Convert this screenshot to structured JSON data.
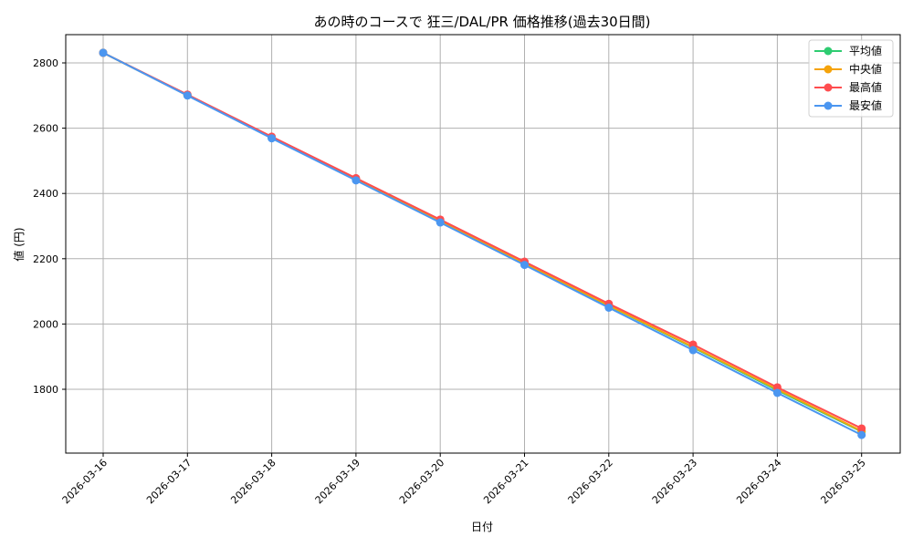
{
  "chart_data": {
    "type": "line",
    "title": "あの時のコースで 狂三/DAL/PR 価格推移(過去30日間)",
    "xlabel": "日付",
    "ylabel": "値 (円)",
    "categories": [
      "2026-03-16",
      "2026-03-17",
      "2026-03-18",
      "2026-03-19",
      "2026-03-20",
      "2026-03-21",
      "2026-03-22",
      "2026-03-23",
      "2026-03-24",
      "2026-03-25"
    ],
    "yticks": [
      1800,
      2000,
      2200,
      2400,
      2600,
      2800
    ],
    "ylim": [
      1625,
      2890
    ],
    "grid": true,
    "legend_position": "upper right",
    "series": [
      {
        "name": "平均値",
        "color": "#2ecc71",
        "values": [
          2831,
          2701,
          2571,
          2443,
          2315,
          2186,
          2056,
          1928,
          1797,
          1670
        ]
      },
      {
        "name": "中央値",
        "color": "#f5a30a",
        "values": [
          2831,
          2701,
          2572,
          2444,
          2316,
          2187,
          2057,
          1930,
          1800,
          1672
        ]
      },
      {
        "name": "最高値",
        "color": "#ff4d4f",
        "values": [
          2831,
          2703,
          2574,
          2447,
          2320,
          2191,
          2062,
          1937,
          1806,
          1680
        ]
      },
      {
        "name": "最安値",
        "color": "#4b96f0",
        "values": [
          2831,
          2700,
          2569,
          2440,
          2311,
          2181,
          2050,
          1920,
          1789,
          1660
        ]
      }
    ]
  }
}
